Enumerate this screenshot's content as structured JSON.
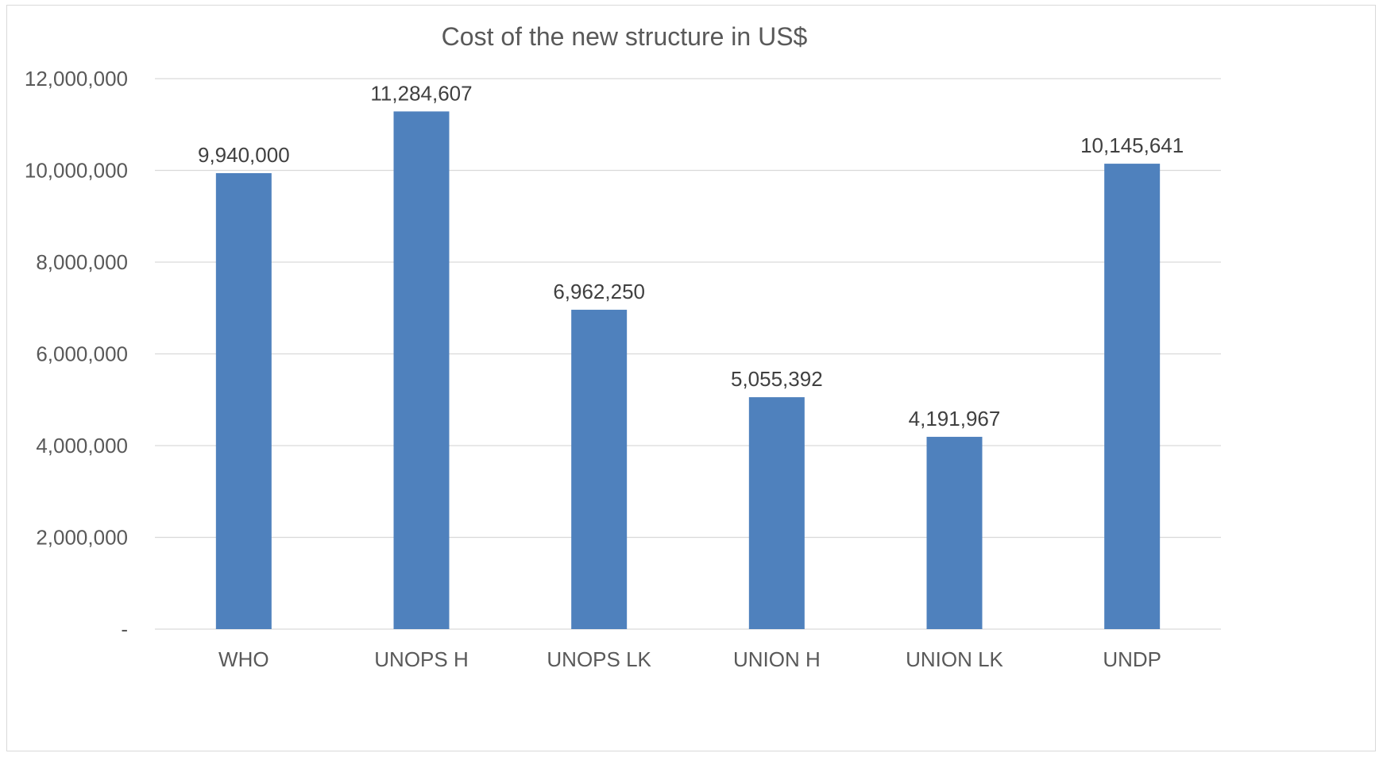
{
  "chart_data": {
    "type": "bar",
    "title": "Cost of the new structure in US$",
    "categories": [
      "WHO",
      "UNOPS H",
      "UNOPS LK",
      "UNION H",
      "UNION LK",
      "UNDP"
    ],
    "values": [
      9940000,
      11284607,
      6962250,
      5055392,
      4191967,
      10145641
    ],
    "data_labels": [
      "9,940,000",
      "11,284,607",
      "6,962,250",
      "5,055,392",
      "4,191,967",
      "10,145,641"
    ],
    "ylim": [
      0,
      12000000
    ],
    "y_ticks": [
      0,
      2000000,
      4000000,
      6000000,
      8000000,
      10000000,
      12000000
    ],
    "y_tick_labels": [
      "-",
      "2,000,000",
      "4,000,000",
      "6,000,000",
      "8,000,000",
      "10,000,000",
      "12,000,000"
    ],
    "xlabel": "",
    "ylabel": "",
    "grid": true,
    "legend": "none",
    "colors": {
      "bar": "#4f81bd",
      "grid": "#d9d9d9",
      "text": "#595959"
    }
  }
}
